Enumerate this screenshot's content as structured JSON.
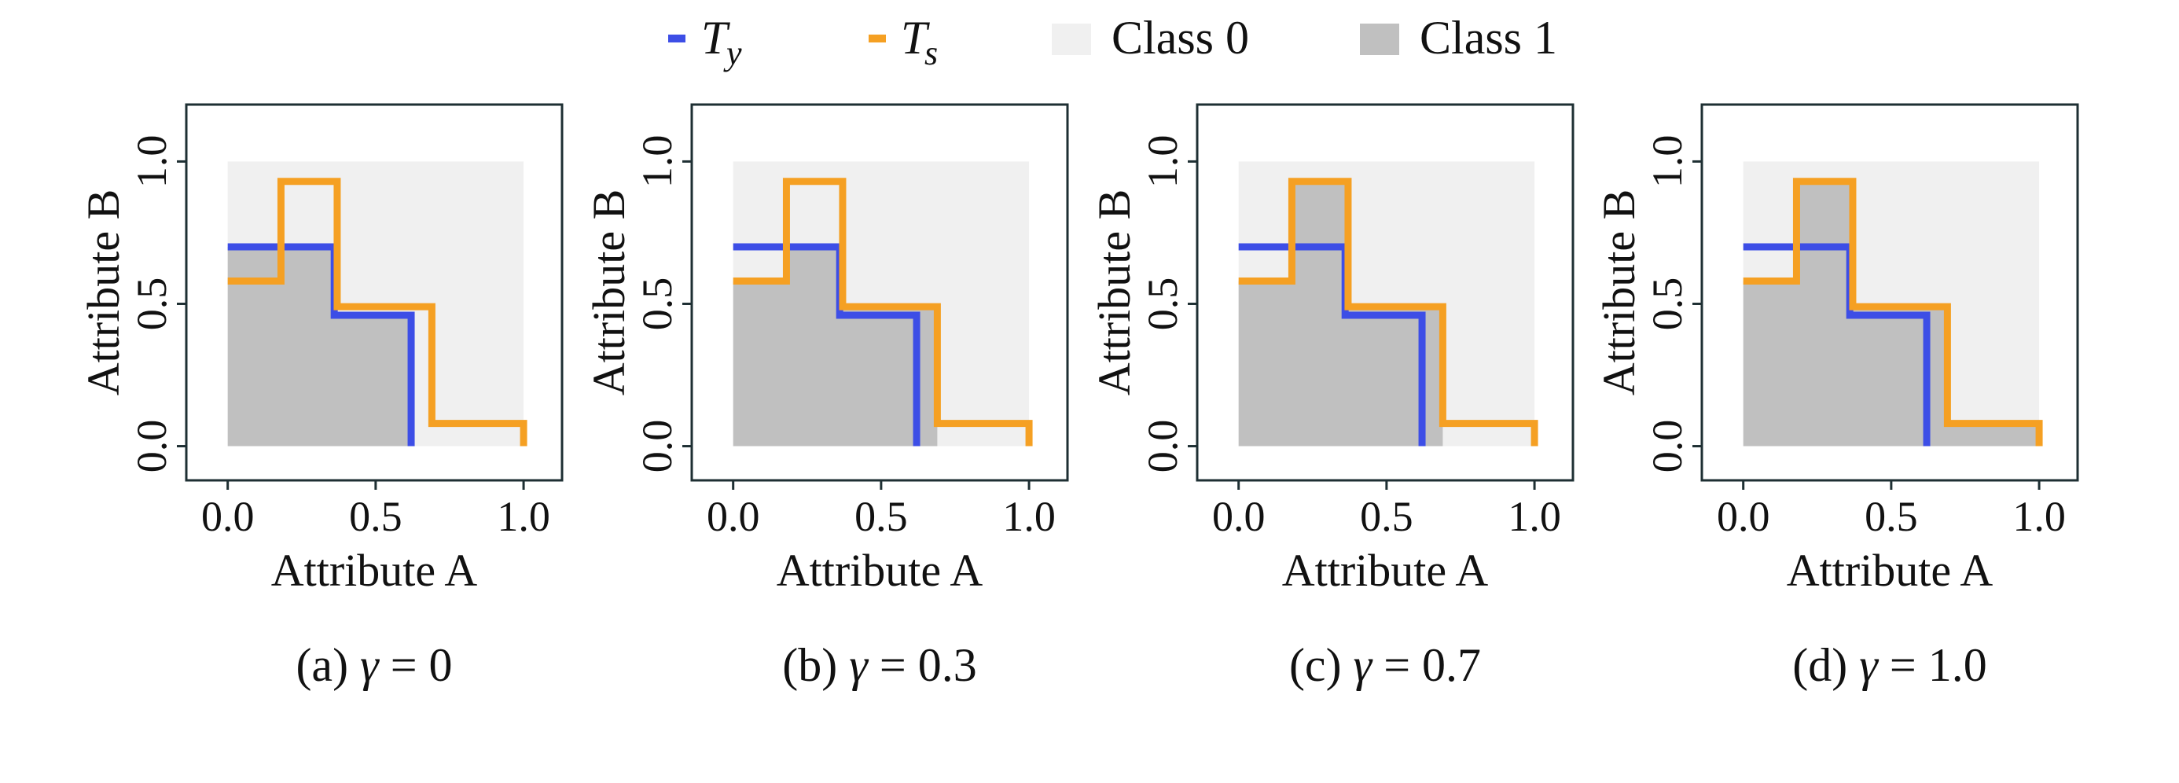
{
  "legend": {
    "items": [
      {
        "kind": "line",
        "symbol": "T",
        "subscript": "y",
        "color": "#3d4ee6"
      },
      {
        "kind": "line",
        "symbol": "T",
        "subscript": "s",
        "color": "#f5a023"
      },
      {
        "kind": "patch",
        "label": "Class 0",
        "color": "#f0f0f0"
      },
      {
        "kind": "patch",
        "label": "Class 1",
        "color": "#c0c0c0"
      }
    ]
  },
  "chart_data": [
    {
      "type": "area",
      "panel": "a",
      "caption_prefix": "(a)",
      "gamma_symbol": "γ",
      "caption_value": "= 0",
      "xlabel": "Attribute A",
      "ylabel": "Attribute B",
      "xlim": [
        -0.14,
        1.13
      ],
      "ylim": [
        -0.12,
        1.2
      ],
      "xticks": [
        "0.0",
        "0.5",
        "1.0"
      ],
      "yticks": [
        "0.0",
        "0.5",
        "1.0"
      ],
      "class0_region": {
        "x": [
          0,
          1
        ],
        "y": [
          0,
          1
        ]
      },
      "class1_region": [
        [
          0,
          0
        ],
        [
          0,
          0.7
        ],
        [
          0.36,
          0.7
        ],
        [
          0.36,
          0.46
        ],
        [
          0.62,
          0.46
        ],
        [
          0.62,
          0
        ]
      ],
      "series": [
        {
          "name": "Ty",
          "color": "#3d4ee6",
          "points": [
            [
              0,
              0.7
            ],
            [
              0.36,
              0.7
            ],
            [
              0.36,
              0.46
            ],
            [
              0.62,
              0.46
            ],
            [
              0.62,
              0
            ]
          ]
        },
        {
          "name": "Ts",
          "color": "#f5a023",
          "points": [
            [
              0,
              0.58
            ],
            [
              0.18,
              0.58
            ],
            [
              0.18,
              0.93
            ],
            [
              0.37,
              0.93
            ],
            [
              0.37,
              0.49
            ],
            [
              0.69,
              0.49
            ],
            [
              0.69,
              0.08
            ],
            [
              1.0,
              0.08
            ],
            [
              1.0,
              0
            ]
          ]
        }
      ]
    },
    {
      "type": "area",
      "panel": "b",
      "caption_prefix": "(b)",
      "gamma_symbol": "γ",
      "caption_value": "= 0.3",
      "xlabel": "Attribute A",
      "ylabel": "Attribute B",
      "xlim": [
        -0.14,
        1.13
      ],
      "ylim": [
        -0.12,
        1.2
      ],
      "xticks": [
        "0.0",
        "0.5",
        "1.0"
      ],
      "yticks": [
        "0.0",
        "0.5",
        "1.0"
      ],
      "class0_region": {
        "x": [
          0,
          1
        ],
        "y": [
          0,
          1
        ]
      },
      "class1_region": [
        [
          0,
          0
        ],
        [
          0,
          0.58
        ],
        [
          0.18,
          0.58
        ],
        [
          0.18,
          0.7
        ],
        [
          0.36,
          0.7
        ],
        [
          0.36,
          0.49
        ],
        [
          0.69,
          0.49
        ],
        [
          0.69,
          0
        ]
      ],
      "series": [
        {
          "name": "Ty",
          "color": "#3d4ee6",
          "points": [
            [
              0,
              0.7
            ],
            [
              0.36,
              0.7
            ],
            [
              0.36,
              0.46
            ],
            [
              0.62,
              0.46
            ],
            [
              0.62,
              0
            ]
          ]
        },
        {
          "name": "Ts",
          "color": "#f5a023",
          "points": [
            [
              0,
              0.58
            ],
            [
              0.18,
              0.58
            ],
            [
              0.18,
              0.93
            ],
            [
              0.37,
              0.93
            ],
            [
              0.37,
              0.49
            ],
            [
              0.69,
              0.49
            ],
            [
              0.69,
              0.08
            ],
            [
              1.0,
              0.08
            ],
            [
              1.0,
              0
            ]
          ]
        }
      ]
    },
    {
      "type": "area",
      "panel": "c",
      "caption_prefix": "(c)",
      "gamma_symbol": "γ",
      "caption_value": "= 0.7",
      "xlabel": "Attribute A",
      "ylabel": "Attribute B",
      "xlim": [
        -0.14,
        1.13
      ],
      "ylim": [
        -0.12,
        1.2
      ],
      "xticks": [
        "0.0",
        "0.5",
        "1.0"
      ],
      "yticks": [
        "0.0",
        "0.5",
        "1.0"
      ],
      "class0_region": {
        "x": [
          0,
          1
        ],
        "y": [
          0,
          1
        ]
      },
      "class1_region": [
        [
          0,
          0
        ],
        [
          0,
          0.58
        ],
        [
          0.18,
          0.58
        ],
        [
          0.18,
          0.93
        ],
        [
          0.37,
          0.93
        ],
        [
          0.37,
          0.49
        ],
        [
          0.69,
          0.49
        ],
        [
          0.69,
          0
        ]
      ],
      "series": [
        {
          "name": "Ty",
          "color": "#3d4ee6",
          "points": [
            [
              0,
              0.7
            ],
            [
              0.36,
              0.7
            ],
            [
              0.36,
              0.46
            ],
            [
              0.62,
              0.46
            ],
            [
              0.62,
              0
            ]
          ]
        },
        {
          "name": "Ts",
          "color": "#f5a023",
          "points": [
            [
              0,
              0.58
            ],
            [
              0.18,
              0.58
            ],
            [
              0.18,
              0.93
            ],
            [
              0.37,
              0.93
            ],
            [
              0.37,
              0.49
            ],
            [
              0.69,
              0.49
            ],
            [
              0.69,
              0.08
            ],
            [
              1.0,
              0.08
            ],
            [
              1.0,
              0
            ]
          ]
        }
      ]
    },
    {
      "type": "area",
      "panel": "d",
      "caption_prefix": "(d)",
      "gamma_symbol": "γ",
      "caption_value": "= 1.0",
      "xlabel": "Attribute A",
      "ylabel": "Attribute B",
      "xlim": [
        -0.14,
        1.13
      ],
      "ylim": [
        -0.12,
        1.2
      ],
      "xticks": [
        "0.0",
        "0.5",
        "1.0"
      ],
      "yticks": [
        "0.0",
        "0.5",
        "1.0"
      ],
      "class0_region": {
        "x": [
          0,
          1
        ],
        "y": [
          0,
          1
        ]
      },
      "class1_region": [
        [
          0,
          0
        ],
        [
          0,
          0.58
        ],
        [
          0.18,
          0.58
        ],
        [
          0.18,
          0.93
        ],
        [
          0.37,
          0.93
        ],
        [
          0.37,
          0.49
        ],
        [
          0.69,
          0.49
        ],
        [
          0.69,
          0.08
        ],
        [
          1.0,
          0.08
        ],
        [
          1.0,
          0
        ]
      ],
      "series": [
        {
          "name": "Ty",
          "color": "#3d4ee6",
          "points": [
            [
              0,
              0.7
            ],
            [
              0.36,
              0.7
            ],
            [
              0.36,
              0.46
            ],
            [
              0.62,
              0.46
            ],
            [
              0.62,
              0
            ]
          ]
        },
        {
          "name": "Ts",
          "color": "#f5a023",
          "points": [
            [
              0,
              0.58
            ],
            [
              0.18,
              0.58
            ],
            [
              0.18,
              0.93
            ],
            [
              0.37,
              0.93
            ],
            [
              0.37,
              0.49
            ],
            [
              0.69,
              0.49
            ],
            [
              0.69,
              0.08
            ],
            [
              1.0,
              0.08
            ],
            [
              1.0,
              0
            ]
          ]
        }
      ]
    }
  ]
}
